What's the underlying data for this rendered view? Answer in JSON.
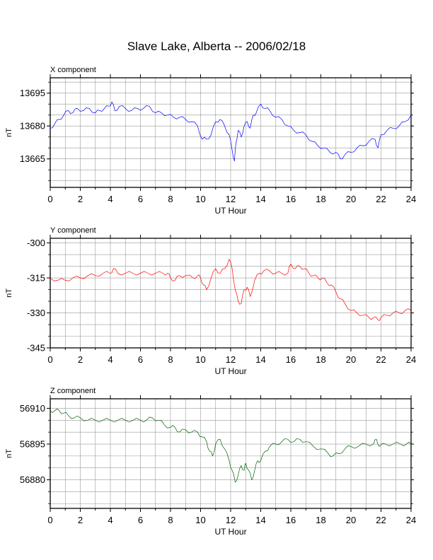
{
  "title": "Slave Lake, Alberta -- 2006/02/18",
  "chart_data": [
    {
      "type": "line",
      "subtitle": "X component",
      "xlabel": "UT Hour",
      "ylabel": "nT",
      "xlim": [
        0,
        24
      ],
      "ylim": [
        13652,
        13702
      ],
      "xticks": [
        0,
        2,
        4,
        6,
        8,
        10,
        12,
        14,
        16,
        18,
        20,
        22,
        24
      ],
      "yticks": [
        13665,
        13680,
        13695
      ],
      "grid": true,
      "color": "#0000ff",
      "series": [
        {
          "x": [
            0,
            0.3,
            0.6,
            0.9,
            1.2,
            1.5,
            1.8,
            2.2,
            2.6,
            3.0,
            3.3,
            3.6,
            3.9,
            4.1,
            4.3,
            4.6,
            5.0,
            5.4,
            5.8,
            6.2,
            6.6,
            7.0,
            7.4,
            7.8,
            8.2,
            8.6,
            9.0,
            9.4,
            9.8,
            10.1,
            10.4,
            10.7,
            11.0,
            11.3,
            11.6,
            11.9,
            12.1,
            12.25,
            12.35,
            12.5,
            12.7,
            12.9,
            13.1,
            13.3,
            13.5,
            13.7,
            14.0,
            14.3,
            14.6,
            15.0,
            15.4,
            15.8,
            16.2,
            16.6,
            17.0,
            17.4,
            17.8,
            18.2,
            18.6,
            19.0,
            19.3,
            19.6,
            20.0,
            20.4,
            20.8,
            21.2,
            21.6,
            21.8,
            22.0,
            22.4,
            22.8,
            23.2,
            23.6,
            24.0
          ],
          "y": [
            13679,
            13681,
            13683,
            13685,
            13687,
            13686,
            13688,
            13687,
            13688,
            13686,
            13687,
            13688,
            13689,
            13691,
            13687,
            13689,
            13688,
            13687,
            13688,
            13688,
            13689,
            13686,
            13686,
            13685,
            13684,
            13684,
            13683,
            13682,
            13680,
            13674,
            13674,
            13676,
            13682,
            13683,
            13680,
            13676,
            13669,
            13664,
            13672,
            13678,
            13675,
            13680,
            13682,
            13679,
            13685,
            13686,
            13690,
            13688,
            13687,
            13684,
            13683,
            13680,
            13678,
            13677,
            13676,
            13673,
            13671,
            13670,
            13668,
            13668,
            13665,
            13667,
            13668,
            13670,
            13671,
            13673,
            13674,
            13670,
            13676,
            13678,
            13679,
            13680,
            13682,
            13685
          ]
        }
      ]
    },
    {
      "type": "line",
      "subtitle": "Y component",
      "xlabel": "UT Hour",
      "ylabel": "nT",
      "xlim": [
        0,
        24
      ],
      "ylim": [
        -345,
        -298
      ],
      "xticks": [
        0,
        2,
        4,
        6,
        8,
        10,
        12,
        14,
        16,
        18,
        20,
        22,
        24
      ],
      "yticks": [
        -345,
        -330,
        -315,
        -300
      ],
      "grid": true,
      "color": "#ff0000",
      "series": [
        {
          "x": [
            0,
            0.5,
            1.0,
            1.5,
            2.0,
            2.5,
            3.0,
            3.5,
            4.0,
            4.2,
            4.5,
            5.0,
            5.5,
            6.0,
            6.5,
            7.0,
            7.5,
            7.8,
            8.0,
            8.3,
            8.6,
            9.0,
            9.5,
            9.8,
            10.0,
            10.2,
            10.4,
            10.7,
            11.0,
            11.3,
            11.6,
            11.9,
            12.1,
            12.3,
            12.5,
            12.7,
            12.9,
            13.1,
            13.3,
            13.6,
            13.9,
            14.2,
            14.6,
            15.0,
            15.4,
            15.8,
            16.0,
            16.3,
            16.6,
            16.9,
            17.2,
            17.5,
            17.8,
            18.1,
            18.4,
            18.7,
            19.0,
            19.3,
            19.6,
            20.0,
            20.4,
            20.8,
            21.2,
            21.5,
            21.8,
            22.0,
            22.4,
            22.8,
            23.2,
            23.6,
            24.0
          ],
          "y": [
            -315,
            -316,
            -316,
            -315,
            -315,
            -314,
            -314,
            -313,
            -313,
            -311,
            -313,
            -313,
            -313,
            -313,
            -313,
            -313,
            -313,
            -313,
            -315,
            -316,
            -314,
            -314,
            -315,
            -314,
            -315,
            -318,
            -320,
            -315,
            -311,
            -313,
            -311,
            -307,
            -311,
            -320,
            -325,
            -326,
            -320,
            -319,
            -323,
            -316,
            -313,
            -312,
            -312,
            -313,
            -313,
            -313,
            -309,
            -311,
            -310,
            -311,
            -313,
            -314,
            -315,
            -315,
            -317,
            -318,
            -321,
            -324,
            -326,
            -329,
            -330,
            -331,
            -332,
            -332,
            -333,
            -332,
            -331,
            -330,
            -330,
            -329,
            -329
          ]
        }
      ]
    },
    {
      "type": "line",
      "subtitle": "Z component",
      "xlabel": "UT Hour",
      "ylabel": "nT",
      "xlim": [
        0,
        24
      ],
      "ylim": [
        56868,
        56914
      ],
      "xticks": [
        0,
        2,
        4,
        6,
        8,
        10,
        12,
        14,
        16,
        18,
        20,
        22,
        24
      ],
      "yticks": [
        56880,
        56895,
        56910
      ],
      "grid": true,
      "color": "#006400",
      "series": [
        {
          "x": [
            0,
            0.3,
            0.6,
            0.9,
            1.2,
            1.6,
            2.0,
            2.5,
            3.0,
            3.5,
            4.0,
            4.5,
            5.0,
            5.5,
            6.0,
            6.4,
            6.8,
            7.2,
            7.6,
            8.0,
            8.3,
            8.6,
            9.0,
            9.4,
            9.8,
            10.1,
            10.4,
            10.6,
            10.8,
            11.0,
            11.3,
            11.6,
            11.9,
            12.1,
            12.3,
            12.5,
            12.7,
            12.9,
            13.0,
            13.2,
            13.4,
            13.6,
            13.8,
            14.0,
            14.3,
            14.6,
            15.0,
            15.4,
            15.8,
            16.2,
            16.6,
            17.0,
            17.5,
            18.0,
            18.5,
            18.8,
            19.2,
            19.6,
            20.0,
            20.5,
            21.0,
            21.5,
            21.7,
            21.9,
            22.3,
            22.8,
            23.3,
            23.7,
            24.0
          ],
          "y": [
            56909,
            56909,
            56909,
            56908,
            56907,
            56906,
            56906,
            56905,
            56905,
            56905,
            56905,
            56905,
            56905,
            56905,
            56905,
            56905,
            56906,
            56905,
            56903,
            56902,
            56902,
            56900,
            56901,
            56900,
            56900,
            56898,
            56896,
            56892,
            56890,
            56895,
            56897,
            56893,
            56888,
            56884,
            56879,
            56882,
            56886,
            56884,
            56887,
            56884,
            56880,
            56884,
            56888,
            56888,
            56892,
            56894,
            56895,
            56896,
            56897,
            56896,
            56897,
            56896,
            56894,
            56893,
            56891,
            56890,
            56891,
            56893,
            56894,
            56894,
            56895,
            56895,
            56897,
            56894,
            56895,
            56895,
            56895,
            56895,
            56895
          ]
        }
      ]
    }
  ]
}
